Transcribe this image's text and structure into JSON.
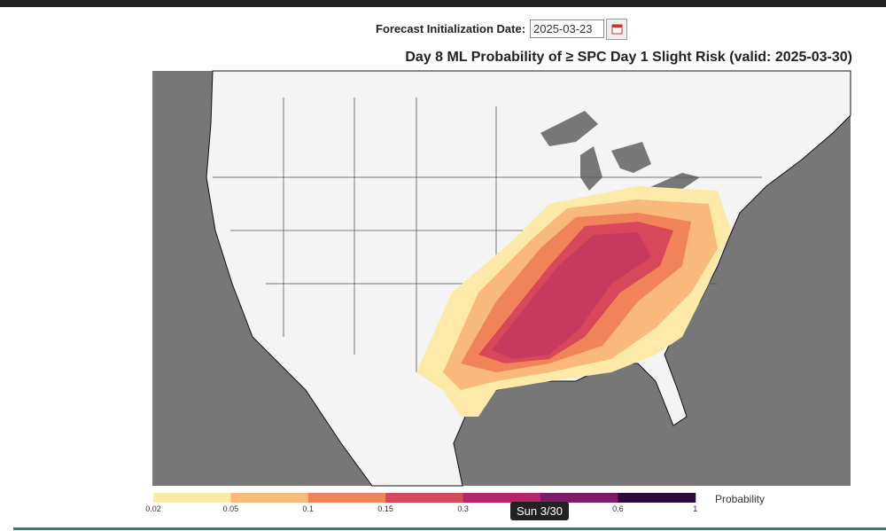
{
  "header": {
    "label": "Forecast Initialization Date:",
    "date": "2025-03-23"
  },
  "map": {
    "title": "Day 8 ML Probability of ≥ SPC Day 1 Slight Risk (valid: 2025-03-30)"
  },
  "colorbar": {
    "label": "Probability",
    "colors": [
      "#fdeaa8",
      "#f8b97b",
      "#f08358",
      "#d9475a",
      "#b5256b",
      "#7e1a6b",
      "#2e0a3a"
    ],
    "ticks": [
      "0.02",
      "0.05",
      "0.1",
      "0.15",
      "0.3",
      "0.6",
      "1"
    ]
  },
  "tooltip": {
    "text": "Sun 3/30"
  }
}
